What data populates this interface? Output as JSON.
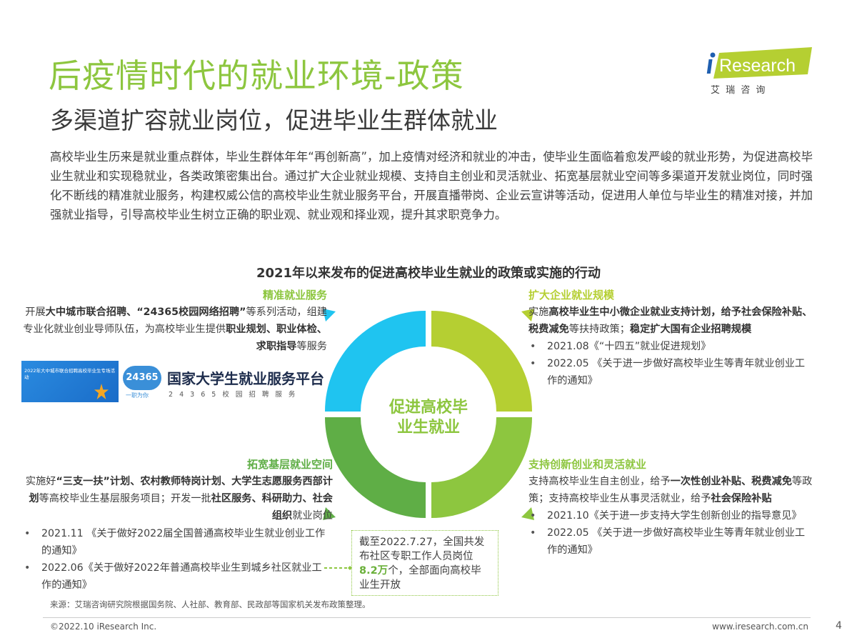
{
  "header": {
    "title": "后疫情时代的就业环境-政策",
    "subtitle": "多渠道扩容就业岗位，促进毕业生群体就业"
  },
  "logo": {
    "brand": "iResearch",
    "cn": "艾 瑞 咨 询",
    "colors": {
      "green": "#b5cf32",
      "dot": "#1f5fb0"
    }
  },
  "intro": "高校毕业生历来是就业重点群体，毕业生群体年年“再创新高”，加上疫情对经济和就业的冲击，使毕业生面临着愈发严峻的就业形势，为促进高校毕业生就业和实现稳就业，各类政策密集出台。通过扩大企业就业规模、支持自主创业和灵活就业、拓宽基层就业空间等多渠道开发就业岗位，同时强化不断线的精准就业服务，构建权威公信的高校毕业生就业服务平台，开展直播带岗、企业云宣讲等活动，促进用人单位与毕业生的精准对接，并加强就业指导，引导高校毕业生树立正确的职业观、就业观和择业观，提升其求职竞争力。",
  "section_title": "2021年以来发布的促进高校毕业生就业的政策或实施的行动",
  "ring": {
    "center": "促进高校毕业生就业",
    "colors": {
      "top_left": "#1fc4f0",
      "top_right": "#b5cf32",
      "bottom_right": "#8dc63f",
      "bottom_left": "#5fae46",
      "center_text": "#8dc63f"
    }
  },
  "quadrants": {
    "top_left": {
      "heading": "精准就业服务",
      "heading_color": "#8dc63f",
      "body": [
        {
          "t": "开展"
        },
        {
          "t": "大中城市联合招聘、“24365校园网络招聘”",
          "b": true
        },
        {
          "t": "等系列活动，组建专业化就业创业导师队伍，为高校毕业生提供"
        },
        {
          "t": "职业规划、职业体检、求职指导",
          "b": true
        },
        {
          "t": "等服务"
        }
      ],
      "banner_text": "2022年大中城市联合招聘高校毕业生专场活动",
      "platform": {
        "badge": "24365",
        "badge_sub": "一职为你",
        "name": "国家大学生就业服务平台",
        "tagline": "2 4 3 6 5 校 园 招 聘 服 务"
      }
    },
    "top_right": {
      "heading": "扩大企业就业规模",
      "heading_color": "#b5cf32",
      "body": [
        {
          "t": "实施"
        },
        {
          "t": "高校毕业生中小微企业就业支持计划，给予社会保险补贴、税费减免",
          "b": true
        },
        {
          "t": "等扶持政策；"
        },
        {
          "t": "稳定扩大国有企业招聘规模",
          "b": true
        }
      ],
      "bullets": [
        "2021.08《“十四五”就业促进规划》",
        "2022.05 《关于进一步做好高校毕业生等青年就业创业工作的通知》"
      ]
    },
    "bottom_left": {
      "heading": "拓宽基层就业空间",
      "heading_color": "#5fae46",
      "body": [
        {
          "t": "实施好"
        },
        {
          "t": "“三支一扶”计划、农村教师特岗计划、大学生志愿服务西部计划",
          "b": true
        },
        {
          "t": "等高校毕业生基层服务项目；开发一批"
        },
        {
          "t": "社区服务、科研助力、社会组织",
          "b": true
        },
        {
          "t": "就业岗位"
        }
      ],
      "bullets": [
        "2021.11 《关于做好2022届全国普通高校毕业生就业创业工作的通知》",
        "2022.06《关于做好2022年普通高校毕业生到城乡社区就业工作的通知》"
      ]
    },
    "bottom_right": {
      "heading": "支持创新创业和灵活就业",
      "heading_color": "#8dc63f",
      "body": [
        {
          "t": "支持高校毕业生自主创业，给予"
        },
        {
          "t": "一次性创业补贴、税费减免",
          "b": true
        },
        {
          "t": "等政策；支持高校毕业生从事灵活就业，给予"
        },
        {
          "t": "社会保险补贴",
          "b": true
        }
      ],
      "bullets": [
        "2021.10《关于进一步支持大学生创新创业的指导意见》",
        "2022.05 《关于进一步做好高校毕业生等青年就业创业工作的通知》"
      ]
    }
  },
  "callout": {
    "pre": "截至2022.7.27，全国共发布社区专职工作人员岗位",
    "highlight": "8.2万",
    "post": "个，全部面向高校毕业生开放"
  },
  "source": "来源：艾瑞咨询研究院根据国务院、人社部、教育部、民政部等国家机关发布政策整理。",
  "footer": {
    "copyright": "©2022.10 iResearch Inc.",
    "url": "www.iresearch.com.cn",
    "page": "4"
  }
}
